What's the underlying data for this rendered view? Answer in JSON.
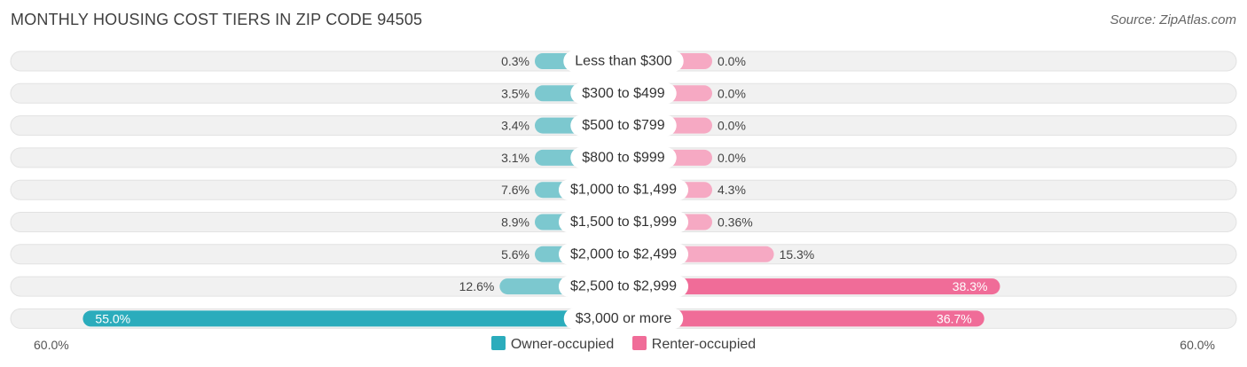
{
  "header": {
    "title": "MONTHLY HOUSING COST TIERS IN ZIP CODE 94505",
    "source": "Source: ZipAtlas.com"
  },
  "axis": {
    "left_label": "60.0%",
    "right_label": "60.0%"
  },
  "legend": {
    "owner_label": "Owner-occupied",
    "renter_label": "Renter-occupied"
  },
  "colors": {
    "owner": "#7cc8cf",
    "owner_strong": "#2bacbc",
    "renter": "#f6a9c3",
    "renter_strong": "#f06c98",
    "row_bg": "#f1f1f1"
  },
  "chart_data": {
    "type": "bar",
    "orientation": "diverging-horizontal",
    "title": "MONTHLY HOUSING COST TIERS IN ZIP CODE 94505",
    "xlim": [
      0,
      60
    ],
    "categories": [
      "Less than $300",
      "$300 to $499",
      "$500 to $799",
      "$800 to $999",
      "$1,000 to $1,499",
      "$1,500 to $1,999",
      "$2,000 to $2,499",
      "$2,500 to $2,999",
      "$3,000 or more"
    ],
    "series": [
      {
        "name": "Owner-occupied",
        "values": [
          0.3,
          3.5,
          3.4,
          3.1,
          7.6,
          8.9,
          5.6,
          12.6,
          55.0
        ],
        "labels": [
          "0.3%",
          "3.5%",
          "3.4%",
          "3.1%",
          "7.6%",
          "8.9%",
          "5.6%",
          "12.6%",
          "55.0%"
        ]
      },
      {
        "name": "Renter-occupied",
        "values": [
          0.0,
          0.0,
          0.0,
          0.0,
          4.3,
          0.36,
          15.3,
          38.3,
          36.7
        ],
        "labels": [
          "0.0%",
          "0.0%",
          "0.0%",
          "0.0%",
          "4.3%",
          "0.36%",
          "15.3%",
          "38.3%",
          "36.7%"
        ]
      }
    ],
    "legend_position": "bottom"
  }
}
